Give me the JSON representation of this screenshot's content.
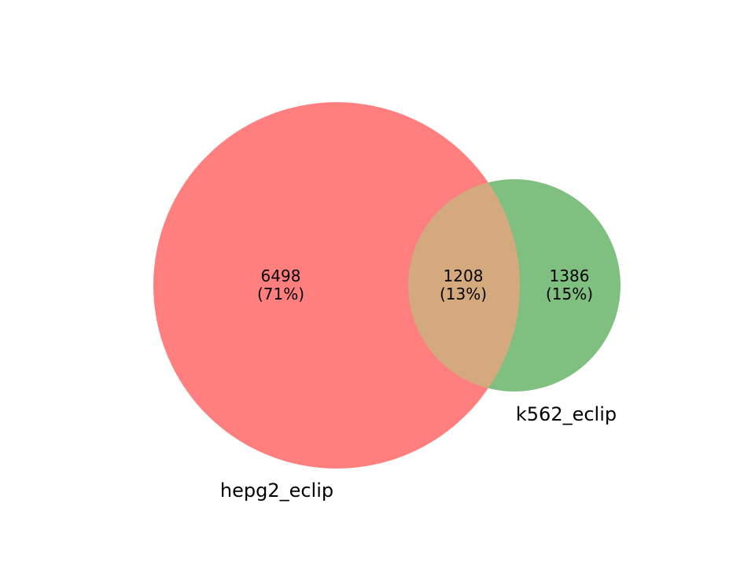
{
  "chart_data": {
    "type": "venn2",
    "sets": [
      {
        "name": "hepg2_eclip",
        "color": "#ff7f7f"
      },
      {
        "name": "k562_eclip",
        "color": "#7fbf7f"
      }
    ],
    "intersection_color": "#d5a97e",
    "regions": {
      "only_a": {
        "count": "6498",
        "percent": "(71%)"
      },
      "both": {
        "count": "1208",
        "percent": "(13%)"
      },
      "only_b": {
        "count": "1386",
        "percent": "(15%)"
      }
    }
  }
}
